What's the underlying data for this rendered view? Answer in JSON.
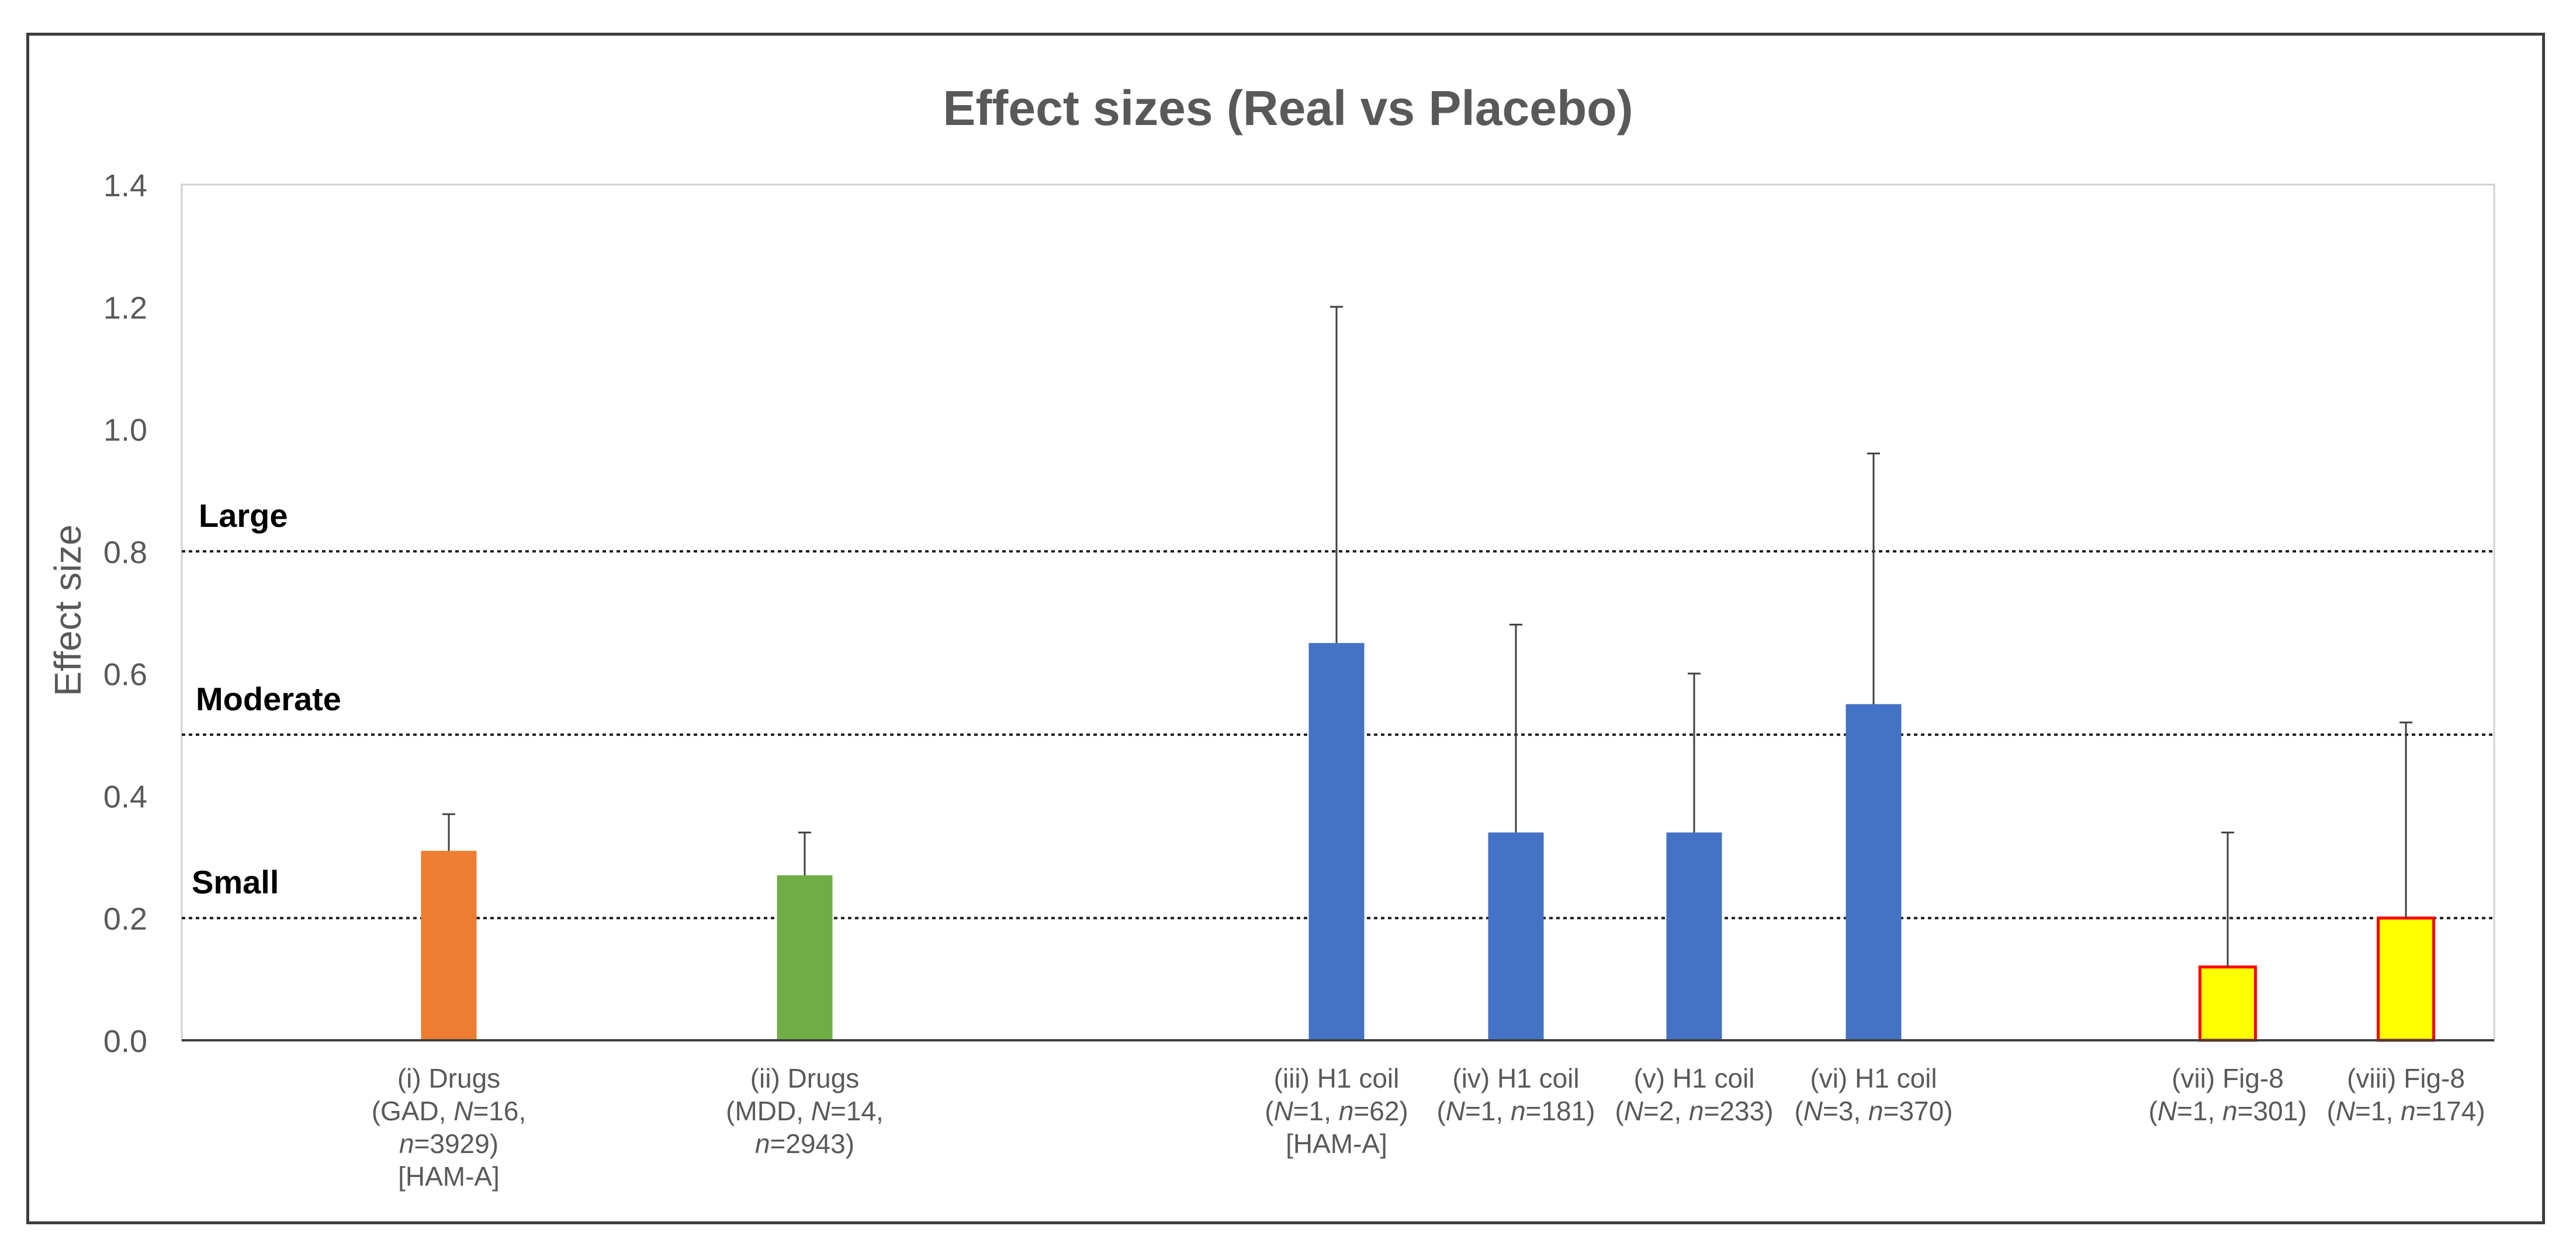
{
  "chart_data": {
    "type": "bar",
    "title": "Effect sizes (Real vs Placebo)",
    "ylabel": "Effect size",
    "xlabel": "",
    "ylim": [
      0,
      1.4
    ],
    "yticks": [
      "0.0",
      "0.2",
      "0.4",
      "0.6",
      "0.8",
      "1.0",
      "1.2",
      "1.4"
    ],
    "grid": false,
    "legend": "none",
    "categories": [
      {
        "lines": [
          [
            {
              "t": "(i) Drugs"
            }
          ],
          [
            {
              "t": "(GAD, "
            },
            {
              "t": "N",
              "i": true
            },
            {
              "t": "=16,"
            }
          ],
          [
            {
              "t": "n",
              "i": true
            },
            {
              "t": "=3929)"
            }
          ],
          [
            {
              "t": "[HAM-A]"
            }
          ]
        ]
      },
      {
        "lines": [
          [
            {
              "t": "(ii) Drugs"
            }
          ],
          [
            {
              "t": "(MDD, "
            },
            {
              "t": "N",
              "i": true
            },
            {
              "t": "=14,"
            }
          ],
          [
            {
              "t": "n",
              "i": true
            },
            {
              "t": "=2943)"
            }
          ]
        ]
      },
      {
        "lines": [
          [
            {
              "t": "(iii) H1 coil"
            }
          ],
          [
            {
              "t": "("
            },
            {
              "t": "N",
              "i": true
            },
            {
              "t": "=1, "
            },
            {
              "t": "n",
              "i": true
            },
            {
              "t": "=62)"
            }
          ],
          [
            {
              "t": "[HAM-A]"
            }
          ]
        ]
      },
      {
        "lines": [
          [
            {
              "t": "(iv) H1 coil"
            }
          ],
          [
            {
              "t": "("
            },
            {
              "t": "N",
              "i": true
            },
            {
              "t": "=1, "
            },
            {
              "t": "n",
              "i": true
            },
            {
              "t": "=181)"
            }
          ]
        ]
      },
      {
        "lines": [
          [
            {
              "t": "(v) H1 coil"
            }
          ],
          [
            {
              "t": "("
            },
            {
              "t": "N",
              "i": true
            },
            {
              "t": "=2, "
            },
            {
              "t": "n",
              "i": true
            },
            {
              "t": "=233)"
            }
          ]
        ]
      },
      {
        "lines": [
          [
            {
              "t": "(vi) H1 coil"
            }
          ],
          [
            {
              "t": "("
            },
            {
              "t": "N",
              "i": true
            },
            {
              "t": "=3, "
            },
            {
              "t": "n",
              "i": true
            },
            {
              "t": "=370)"
            }
          ]
        ]
      },
      {
        "lines": [
          [
            {
              "t": "(vii) Fig-8"
            }
          ],
          [
            {
              "t": "("
            },
            {
              "t": "N",
              "i": true
            },
            {
              "t": "=1, "
            },
            {
              "t": "n",
              "i": true
            },
            {
              "t": "=301)"
            }
          ]
        ]
      },
      {
        "lines": [
          [
            {
              "t": "(viii) Fig-8"
            }
          ],
          [
            {
              "t": "("
            },
            {
              "t": "N",
              "i": true
            },
            {
              "t": "=1, "
            },
            {
              "t": "n",
              "i": true
            },
            {
              "t": "=174)"
            }
          ]
        ]
      }
    ],
    "values": [
      0.31,
      0.27,
      0.65,
      0.34,
      0.34,
      0.55,
      0.12,
      0.2
    ],
    "error_upper": [
      0.37,
      0.34,
      1.2,
      0.68,
      0.6,
      0.96,
      0.34,
      0.52
    ],
    "bar_colors": [
      "#ED7D31",
      "#70AD47",
      "#4472C4",
      "#4472C4",
      "#4472C4",
      "#4472C4",
      "#FFFF00",
      "#FFFF00"
    ],
    "bar_outline": [
      "none",
      "none",
      "none",
      "none",
      "none",
      "none",
      "#FF0000",
      "#FF0000"
    ],
    "reference_lines": [
      {
        "label": "Large",
        "value": 0.8
      },
      {
        "label": "Moderate",
        "value": 0.5
      },
      {
        "label": "Small",
        "value": 0.2
      }
    ]
  }
}
